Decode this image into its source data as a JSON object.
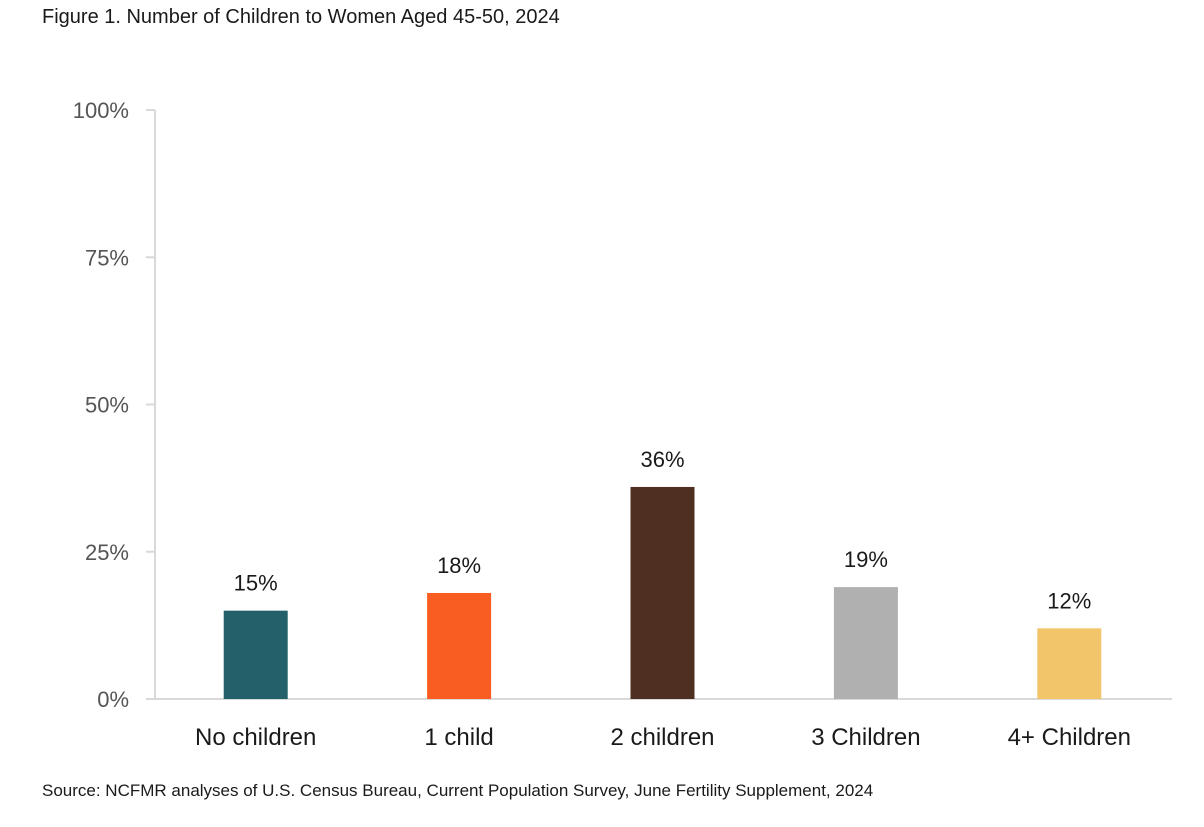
{
  "chart_data": {
    "type": "bar",
    "title": "Figure 1. Number of Children to Women Aged 45-50, 2024",
    "source": "Source: NCFMR analyses of U.S. Census Bureau, Current Population Survey, June Fertility Supplement, 2024",
    "categories": [
      "No children",
      "1 child",
      "2 children",
      "3 Children",
      "4+ Children"
    ],
    "values": [
      15,
      18,
      36,
      19,
      12
    ],
    "data_labels": [
      "15%",
      "18%",
      "36%",
      "19%",
      "12%"
    ],
    "colors": [
      "#23606a",
      "#fa5d21",
      "#4e2f21",
      "#b0b0b0",
      "#f2c56b"
    ],
    "ylim": [
      0,
      100
    ],
    "yticks": [
      0,
      25,
      50,
      75,
      100
    ],
    "ytick_labels": [
      "0%",
      "25%",
      "50%",
      "75%",
      "100%"
    ],
    "xlabel": "",
    "ylabel": "",
    "grid": false,
    "legend": "none"
  }
}
